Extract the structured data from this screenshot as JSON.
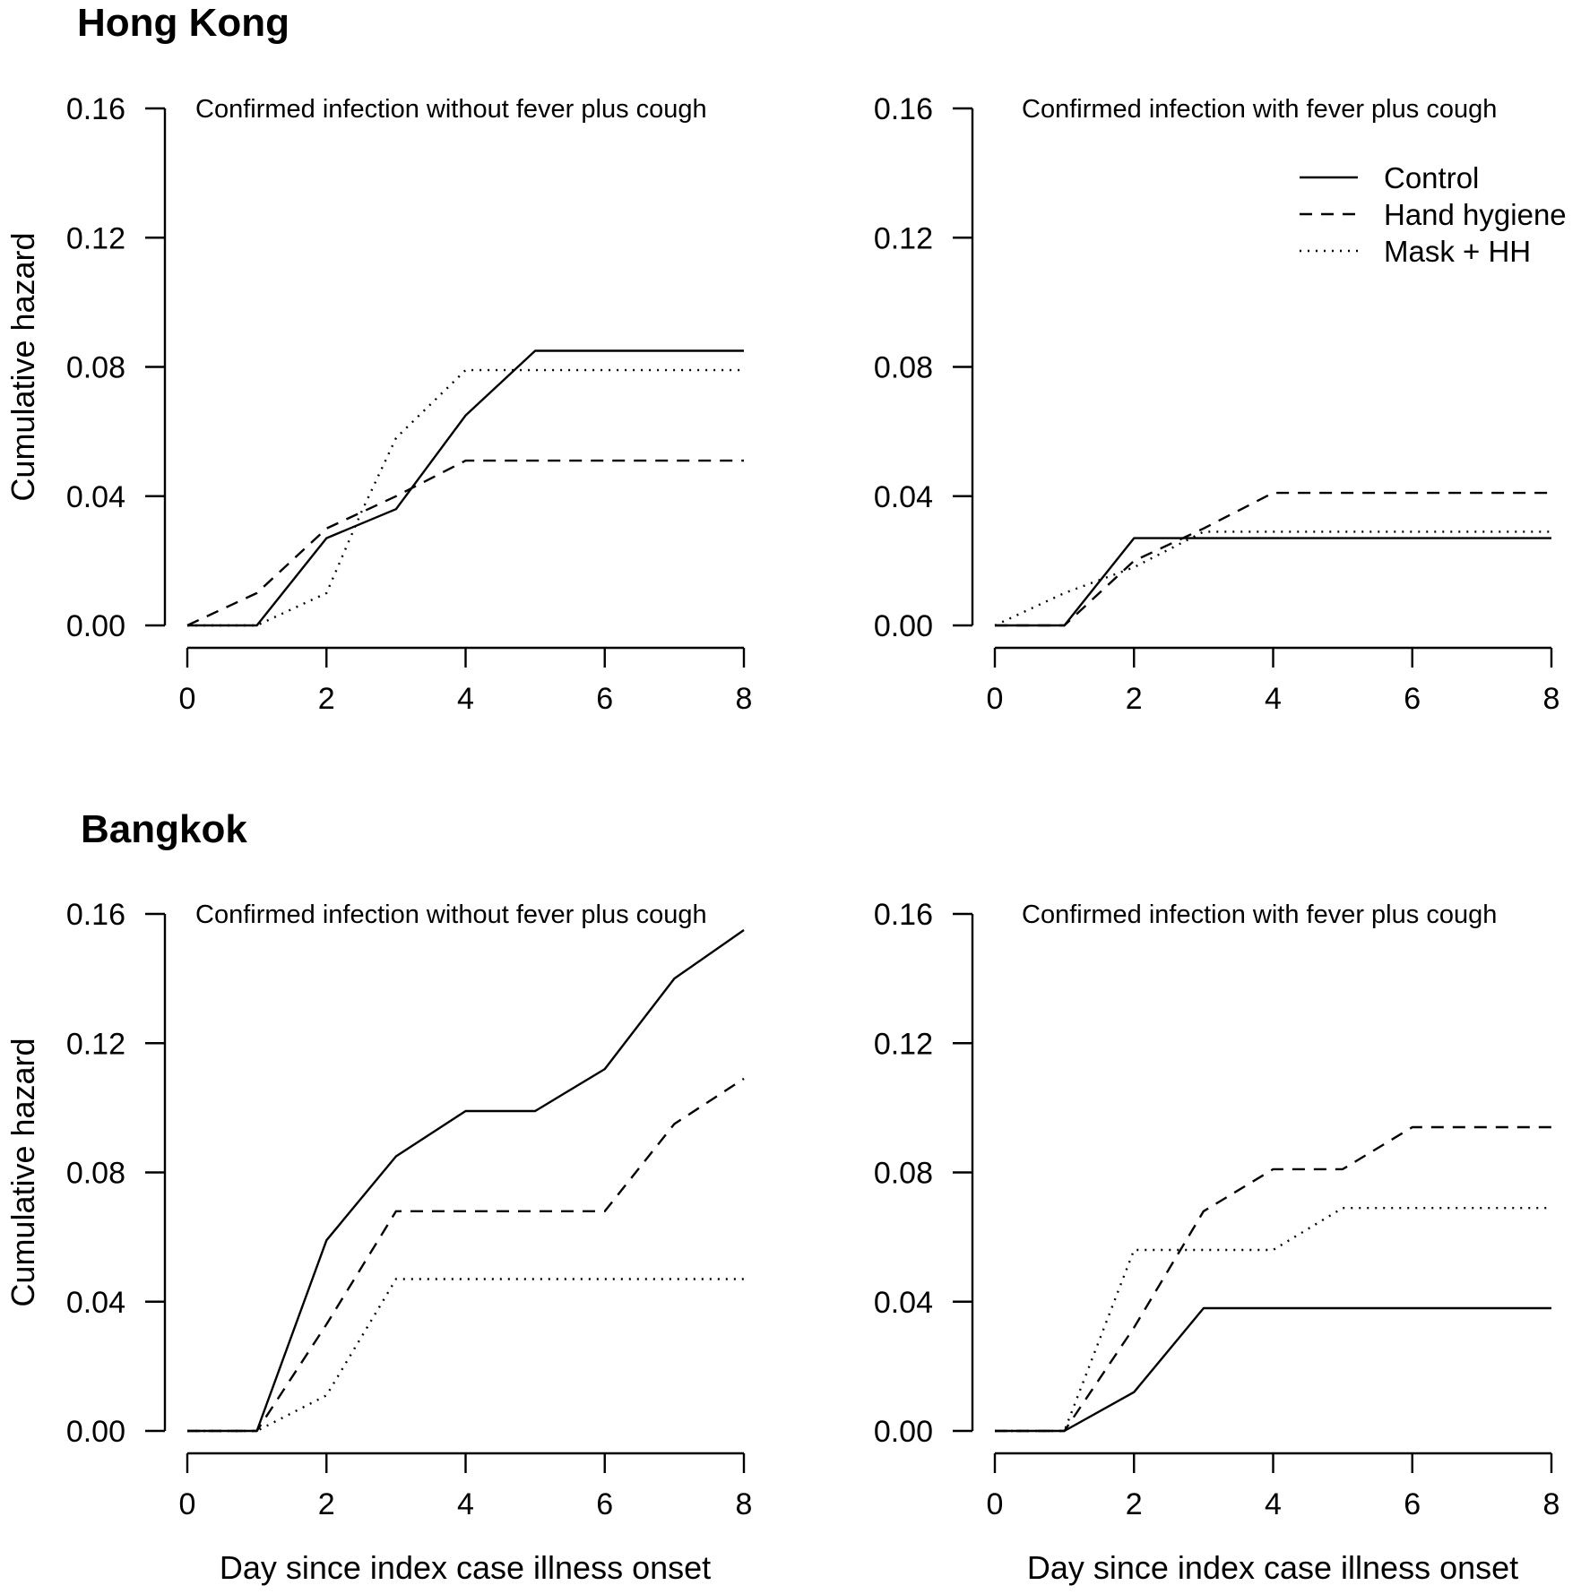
{
  "legend": {
    "entries": [
      {
        "name": "Control",
        "linestyle": "solid"
      },
      {
        "name": "Hand hygiene",
        "linestyle": "dashed"
      },
      {
        "name": "Mask + HH",
        "linestyle": "dotted"
      }
    ],
    "placement": "top-right of Hong Kong fever plus cough panel"
  },
  "chart_data": [
    {
      "type": "line",
      "group_title": "Hong Kong",
      "title": "Confirmed infection without fever plus cough",
      "xlabel": "",
      "ylabel": "Cumulative hazard",
      "xlim": [
        0,
        8
      ],
      "ylim": [
        0,
        0.16
      ],
      "xticks": [
        "0",
        "2",
        "4",
        "6",
        "8"
      ],
      "yticks": [
        "0.00",
        "0.04",
        "0.08",
        "0.12",
        "0.16"
      ],
      "grid": false,
      "series": [
        {
          "name": "Control",
          "linestyle": "solid",
          "x": [
            0,
            1,
            2,
            3,
            4,
            5,
            6,
            7,
            8
          ],
          "y": [
            0,
            0,
            0.027,
            0.036,
            0.065,
            0.085,
            0.085,
            0.085,
            0.085
          ]
        },
        {
          "name": "Hand hygiene",
          "linestyle": "dashed",
          "x": [
            0,
            1,
            2,
            3,
            4,
            5,
            6,
            7,
            8
          ],
          "y": [
            0,
            0.01,
            0.03,
            0.04,
            0.051,
            0.051,
            0.051,
            0.051,
            0.051
          ]
        },
        {
          "name": "Mask + HH",
          "linestyle": "dotted",
          "x": [
            0,
            1,
            2,
            2.5,
            3,
            4,
            5,
            6,
            7,
            8
          ],
          "y": [
            0,
            0,
            0.01,
            0.035,
            0.058,
            0.079,
            0.079,
            0.079,
            0.079,
            0.079
          ]
        }
      ]
    },
    {
      "type": "line",
      "group_title": "",
      "title": "Confirmed infection with fever plus cough",
      "xlabel": "",
      "ylabel": "",
      "xlim": [
        0,
        8
      ],
      "ylim": [
        0,
        0.16
      ],
      "xticks": [
        "0",
        "2",
        "4",
        "6",
        "8"
      ],
      "yticks": [
        "0.00",
        "0.04",
        "0.08",
        "0.12",
        "0.16"
      ],
      "grid": false,
      "series": [
        {
          "name": "Control",
          "linestyle": "solid",
          "x": [
            0,
            1,
            2,
            3,
            4,
            5,
            6,
            7,
            8
          ],
          "y": [
            0,
            0,
            0.027,
            0.027,
            0.027,
            0.027,
            0.027,
            0.027,
            0.027
          ]
        },
        {
          "name": "Hand hygiene",
          "linestyle": "dashed",
          "x": [
            0,
            1,
            2,
            3,
            4,
            5,
            6,
            7,
            8
          ],
          "y": [
            0,
            0,
            0.02,
            0.03,
            0.041,
            0.041,
            0.041,
            0.041,
            0.041
          ]
        },
        {
          "name": "Mask + HH",
          "linestyle": "dotted",
          "x": [
            0,
            1,
            2,
            3,
            4,
            5,
            6,
            7,
            8
          ],
          "y": [
            0,
            0.01,
            0.018,
            0.029,
            0.029,
            0.029,
            0.029,
            0.029,
            0.029
          ]
        }
      ]
    },
    {
      "type": "line",
      "group_title": "Bangkok",
      "title": "Confirmed infection without fever plus cough",
      "xlabel": "Day since index case illness onset",
      "ylabel": "Cumulative hazard",
      "xlim": [
        0,
        8
      ],
      "ylim": [
        0,
        0.16
      ],
      "xticks": [
        "0",
        "2",
        "4",
        "6",
        "8"
      ],
      "yticks": [
        "0.00",
        "0.04",
        "0.08",
        "0.12",
        "0.16"
      ],
      "grid": false,
      "series": [
        {
          "name": "Control",
          "linestyle": "solid",
          "x": [
            0,
            1,
            2,
            3,
            4,
            5,
            6,
            7,
            8
          ],
          "y": [
            0,
            0,
            0.059,
            0.085,
            0.099,
            0.099,
            0.112,
            0.14,
            0.155
          ]
        },
        {
          "name": "Hand hygiene",
          "linestyle": "dashed",
          "x": [
            0,
            1,
            2,
            3,
            4,
            5,
            6,
            7,
            8
          ],
          "y": [
            0,
            0,
            0.033,
            0.068,
            0.068,
            0.068,
            0.068,
            0.095,
            0.109
          ]
        },
        {
          "name": "Mask + HH",
          "linestyle": "dotted",
          "x": [
            0,
            1,
            2,
            3,
            4,
            5,
            6,
            7,
            8
          ],
          "y": [
            0,
            0,
            0.011,
            0.047,
            0.047,
            0.047,
            0.047,
            0.047,
            0.047
          ]
        }
      ]
    },
    {
      "type": "line",
      "group_title": "",
      "title": "Confirmed infection with fever plus cough",
      "xlabel": "Day since index case illness onset",
      "ylabel": "",
      "xlim": [
        0,
        8
      ],
      "ylim": [
        0,
        0.16
      ],
      "xticks": [
        "0",
        "2",
        "4",
        "6",
        "8"
      ],
      "yticks": [
        "0.00",
        "0.04",
        "0.08",
        "0.12",
        "0.16"
      ],
      "grid": false,
      "series": [
        {
          "name": "Control",
          "linestyle": "solid",
          "x": [
            0,
            1,
            2,
            3,
            4,
            5,
            6,
            7,
            8
          ],
          "y": [
            0,
            0,
            0.012,
            0.038,
            0.038,
            0.038,
            0.038,
            0.038,
            0.038
          ]
        },
        {
          "name": "Hand hygiene",
          "linestyle": "dashed",
          "x": [
            0,
            1,
            2,
            3,
            4,
            5,
            6,
            7,
            8
          ],
          "y": [
            0,
            0,
            0.032,
            0.068,
            0.081,
            0.081,
            0.094,
            0.094,
            0.094
          ]
        },
        {
          "name": "Mask + HH",
          "linestyle": "dotted",
          "x": [
            0,
            1,
            2,
            3,
            4,
            5,
            6,
            7,
            8
          ],
          "y": [
            0,
            0,
            0.056,
            0.056,
            0.056,
            0.069,
            0.069,
            0.069,
            0.069
          ]
        }
      ]
    }
  ]
}
